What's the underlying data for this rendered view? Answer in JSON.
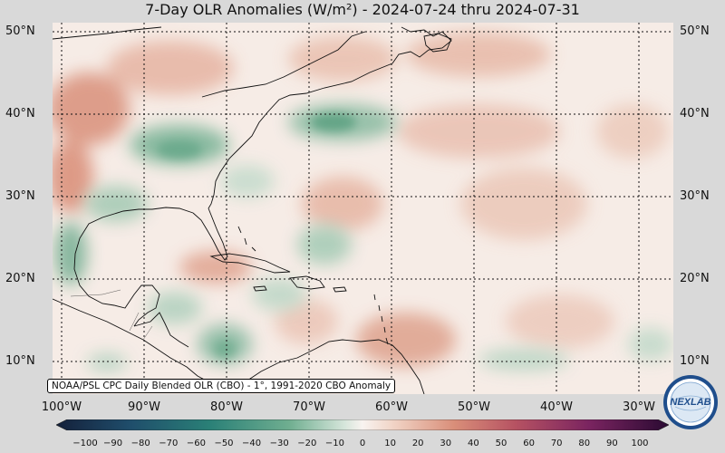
{
  "title": "7-Day OLR Anomalies (W/m²) - 2024-07-24 thru 2024-07-31",
  "credit": "NOAA/PSL CPC Daily Blended OLR (CBO) - 1°, 1991-2020 CBO Anomaly",
  "lat_labels": [
    "50°N",
    "40°N",
    "30°N",
    "20°N",
    "10°N"
  ],
  "lon_labels": [
    "100°W",
    "90°W",
    "80°W",
    "70°W",
    "60°W",
    "50°W",
    "40°W",
    "30°W"
  ],
  "colorbar_ticks": [
    "−100",
    "−90",
    "−80",
    "−70",
    "−60",
    "−50",
    "−40",
    "−30",
    "−20",
    "−10",
    "0",
    "10",
    "20",
    "30",
    "40",
    "50",
    "60",
    "70",
    "80",
    "90",
    "100"
  ],
  "logo_text": "NEXLAB",
  "colors": {
    "negative_strong": "#1a2a4a",
    "negative_mid": "#3a8e72",
    "neutral": "#f7f2ee",
    "positive_mid": "#d07a66",
    "positive_strong": "#2a0a3a"
  }
}
